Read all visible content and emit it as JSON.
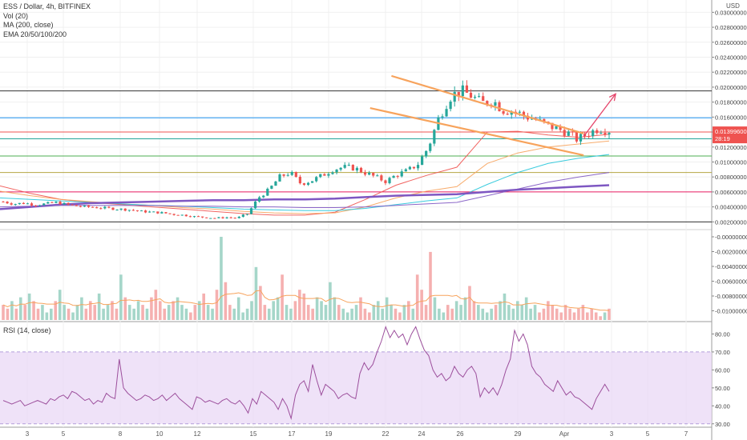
{
  "header": {
    "symbol_line": "ESS / Dollar, 4h, BITFINEX",
    "indicators": [
      "Vol (20)",
      "MA (200, close)",
      "EMA 20/50/100/200"
    ]
  },
  "currency": "USD",
  "rsi_title": "RSI (14, close)",
  "last_price": {
    "value": "0.01399600",
    "countdown": "28:19",
    "color": "#ef5350"
  },
  "colors": {
    "up": "#26a69a",
    "down": "#ef5350",
    "wedge": "#f7a35c",
    "arrow": "#e5456b",
    "ma200": "#7e57c2",
    "rsi": "#9c4f9c",
    "rsi_band": "#e9d8f5"
  },
  "chart_data": [
    {
      "type": "candlestick",
      "title": "ESS / Dollar, 4h, BITFINEX",
      "y_ticks": [
        "0.03000000",
        "0.02800000",
        "0.02600000",
        "0.02400000",
        "0.02200000",
        "0.02000000",
        "0.01800000",
        "0.01600000",
        "0.01400000",
        "0.01200000",
        "0.01000000",
        "0.00800000",
        "0.00600000",
        "0.00400000",
        "0.00200000"
      ],
      "ylim": [
        0.0015,
        0.031
      ],
      "x_ticks": [
        "3",
        "5",
        "8",
        "10",
        "12",
        "15",
        "17",
        "19",
        "22",
        "24",
        "26",
        "29",
        "Apr",
        "3",
        "5",
        "7"
      ],
      "horizontal_levels": [
        {
          "value": 0.0195,
          "color": "#333333"
        },
        {
          "value": 0.0159,
          "color": "#2196f3"
        },
        {
          "value": 0.014,
          "color": "#ef5350"
        },
        {
          "value": 0.0131,
          "color": "#26a69a"
        },
        {
          "value": 0.0108,
          "color": "#4caf50"
        },
        {
          "value": 0.0086,
          "color": "#b5a642"
        },
        {
          "value": 0.006,
          "color": "#e91e63"
        },
        {
          "value": 0.002,
          "color": "#333333"
        }
      ],
      "wedge": {
        "upper": [
          [
            0.55,
            0.0215
          ],
          [
            0.82,
            0.0138
          ]
        ],
        "lower": [
          [
            0.52,
            0.0172
          ],
          [
            0.82,
            0.0109
          ]
        ]
      },
      "arrow": [
        [
          0.82,
          0.0134
        ],
        [
          0.865,
          0.0191
        ]
      ],
      "moving_averages": [
        {
          "name": "EMA 20",
          "color": "#ef5350",
          "values": [
            0.0068,
            0.0058,
            0.005,
            0.0046,
            0.0043,
            0.004,
            0.0037,
            0.0034,
            0.0031,
            0.0029,
            0.0029,
            0.0033,
            0.005,
            0.0069,
            0.0082,
            0.0093,
            0.014,
            0.0141,
            0.0136,
            0.0133,
            0.0137
          ]
        },
        {
          "name": "EMA 50",
          "color": "#f7a35c",
          "values": [
            0.0061,
            0.0055,
            0.005,
            0.0047,
            0.0044,
            0.0042,
            0.0039,
            0.0037,
            0.0034,
            0.0032,
            0.0031,
            0.0032,
            0.004,
            0.0052,
            0.0061,
            0.0067,
            0.0098,
            0.0112,
            0.012,
            0.0124,
            0.0128
          ]
        },
        {
          "name": "EMA 100",
          "color": "#26c6da",
          "values": [
            0.0052,
            0.005,
            0.0048,
            0.0046,
            0.0044,
            0.0042,
            0.0041,
            0.0039,
            0.0037,
            0.0036,
            0.0035,
            0.0035,
            0.0038,
            0.0043,
            0.0048,
            0.0052,
            0.007,
            0.0086,
            0.0098,
            0.0105,
            0.011
          ]
        },
        {
          "name": "EMA 200",
          "color": "#7e57c2",
          "values": [
            0.004,
            0.0041,
            0.0042,
            0.0042,
            0.0042,
            0.0042,
            0.0041,
            0.0041,
            0.004,
            0.004,
            0.0039,
            0.0039,
            0.004,
            0.0042,
            0.0044,
            0.0046,
            0.0055,
            0.0064,
            0.0073,
            0.008,
            0.0086
          ]
        },
        {
          "name": "MA 200",
          "color": "#7e57c2",
          "values": [
            0.0037,
            0.004,
            0.0043,
            0.0045,
            0.0046,
            0.0047,
            0.0048,
            0.0049,
            0.0049,
            0.005,
            0.005,
            0.0051,
            0.0053,
            0.0055,
            0.0056,
            0.0057,
            0.006,
            0.0063,
            0.0065,
            0.0067,
            0.0069
          ]
        }
      ],
      "price_path": [
        0.0047,
        0.0044,
        0.0045,
        0.0043,
        0.0044,
        0.0046,
        0.0043,
        0.0041,
        0.004,
        0.0039,
        0.0038,
        0.0037,
        0.0036,
        0.0034,
        0.0033,
        0.0032,
        0.003,
        0.0029,
        0.0027,
        0.0026,
        0.0025,
        0.0026,
        0.0025,
        0.0031,
        0.0052,
        0.0063,
        0.008,
        0.0086,
        0.0071,
        0.0075,
        0.0082,
        0.009,
        0.0093,
        0.0092,
        0.0086,
        0.008,
        0.0074,
        0.0083,
        0.0088,
        0.0097,
        0.012,
        0.016,
        0.0187,
        0.0195,
        0.0189,
        0.0178,
        0.0183,
        0.017,
        0.0168,
        0.0162,
        0.0157,
        0.015,
        0.0145,
        0.014,
        0.013,
        0.0138,
        0.0145,
        0.0142
      ]
    },
    {
      "type": "bar",
      "title": "Vol (20)",
      "y_ticks": [
        "-0.00000000",
        "-0.00200000",
        "-0.00400000",
        "-0.00600000",
        "-0.00800000",
        "-0.01000000"
      ],
      "values": [
        4,
        3,
        5,
        3,
        6,
        4,
        7,
        5,
        3,
        4,
        2,
        3,
        5,
        8,
        4,
        3,
        2,
        4,
        6,
        3,
        5,
        4,
        7,
        3,
        4,
        5,
        3,
        12,
        6,
        4,
        3,
        5,
        4,
        3,
        6,
        8,
        5,
        3,
        4,
        5,
        6,
        4,
        3,
        2,
        4,
        5,
        7,
        4,
        3,
        8,
        22,
        10,
        4,
        3,
        6,
        2,
        3,
        5,
        14,
        9,
        4,
        3,
        5,
        6,
        12,
        4,
        3,
        5,
        8,
        7,
        4,
        3,
        6,
        5,
        4,
        10,
        6,
        4,
        3,
        2,
        3,
        4,
        6,
        3,
        2,
        4,
        5,
        3,
        6,
        4,
        3,
        2,
        4,
        5,
        3,
        12,
        8,
        4,
        18,
        6,
        3,
        2,
        4,
        3,
        5,
        4,
        6,
        9,
        5,
        4,
        3,
        2,
        3,
        4,
        5,
        7,
        4,
        3,
        5,
        4,
        6,
        3,
        4,
        2,
        3,
        5,
        4,
        3,
        2,
        4,
        3,
        2,
        3,
        4,
        2,
        3,
        2,
        1,
        2,
        3
      ]
    },
    {
      "type": "line",
      "title": "RSI (14, close)",
      "y_ticks": [
        "80.00",
        "70.00",
        "60.00",
        "50.00",
        "40.00",
        "30.00"
      ],
      "ylim": [
        29,
        86
      ],
      "band": [
        30,
        70
      ],
      "values": [
        43,
        42,
        41,
        42,
        43,
        40,
        41,
        42,
        43,
        42,
        41,
        44,
        43,
        45,
        46,
        44,
        48,
        47,
        45,
        43,
        44,
        41,
        43,
        42,
        47,
        45,
        44,
        66,
        50,
        47,
        45,
        43,
        44,
        46,
        45,
        43,
        44,
        46,
        43,
        45,
        47,
        44,
        42,
        40,
        38,
        45,
        44,
        42,
        43,
        42,
        41,
        43,
        44,
        42,
        41,
        43,
        40,
        36,
        44,
        41,
        48,
        46,
        44,
        42,
        38,
        44,
        40,
        33,
        46,
        52,
        54,
        48,
        63,
        54,
        46,
        52,
        50,
        48,
        44,
        46,
        47,
        45,
        44,
        58,
        64,
        60,
        63,
        70,
        76,
        84,
        78,
        82,
        78,
        80,
        74,
        80,
        84,
        77,
        71,
        68,
        60,
        56,
        58,
        54,
        56,
        62,
        58,
        56,
        60,
        62,
        58,
        45,
        50,
        47,
        50,
        46,
        52,
        60,
        66,
        82,
        76,
        80,
        74,
        62,
        58,
        56,
        52,
        50,
        48,
        54,
        50,
        46,
        48,
        45,
        44,
        42,
        40,
        38,
        44,
        48,
        52,
        48
      ]
    }
  ]
}
